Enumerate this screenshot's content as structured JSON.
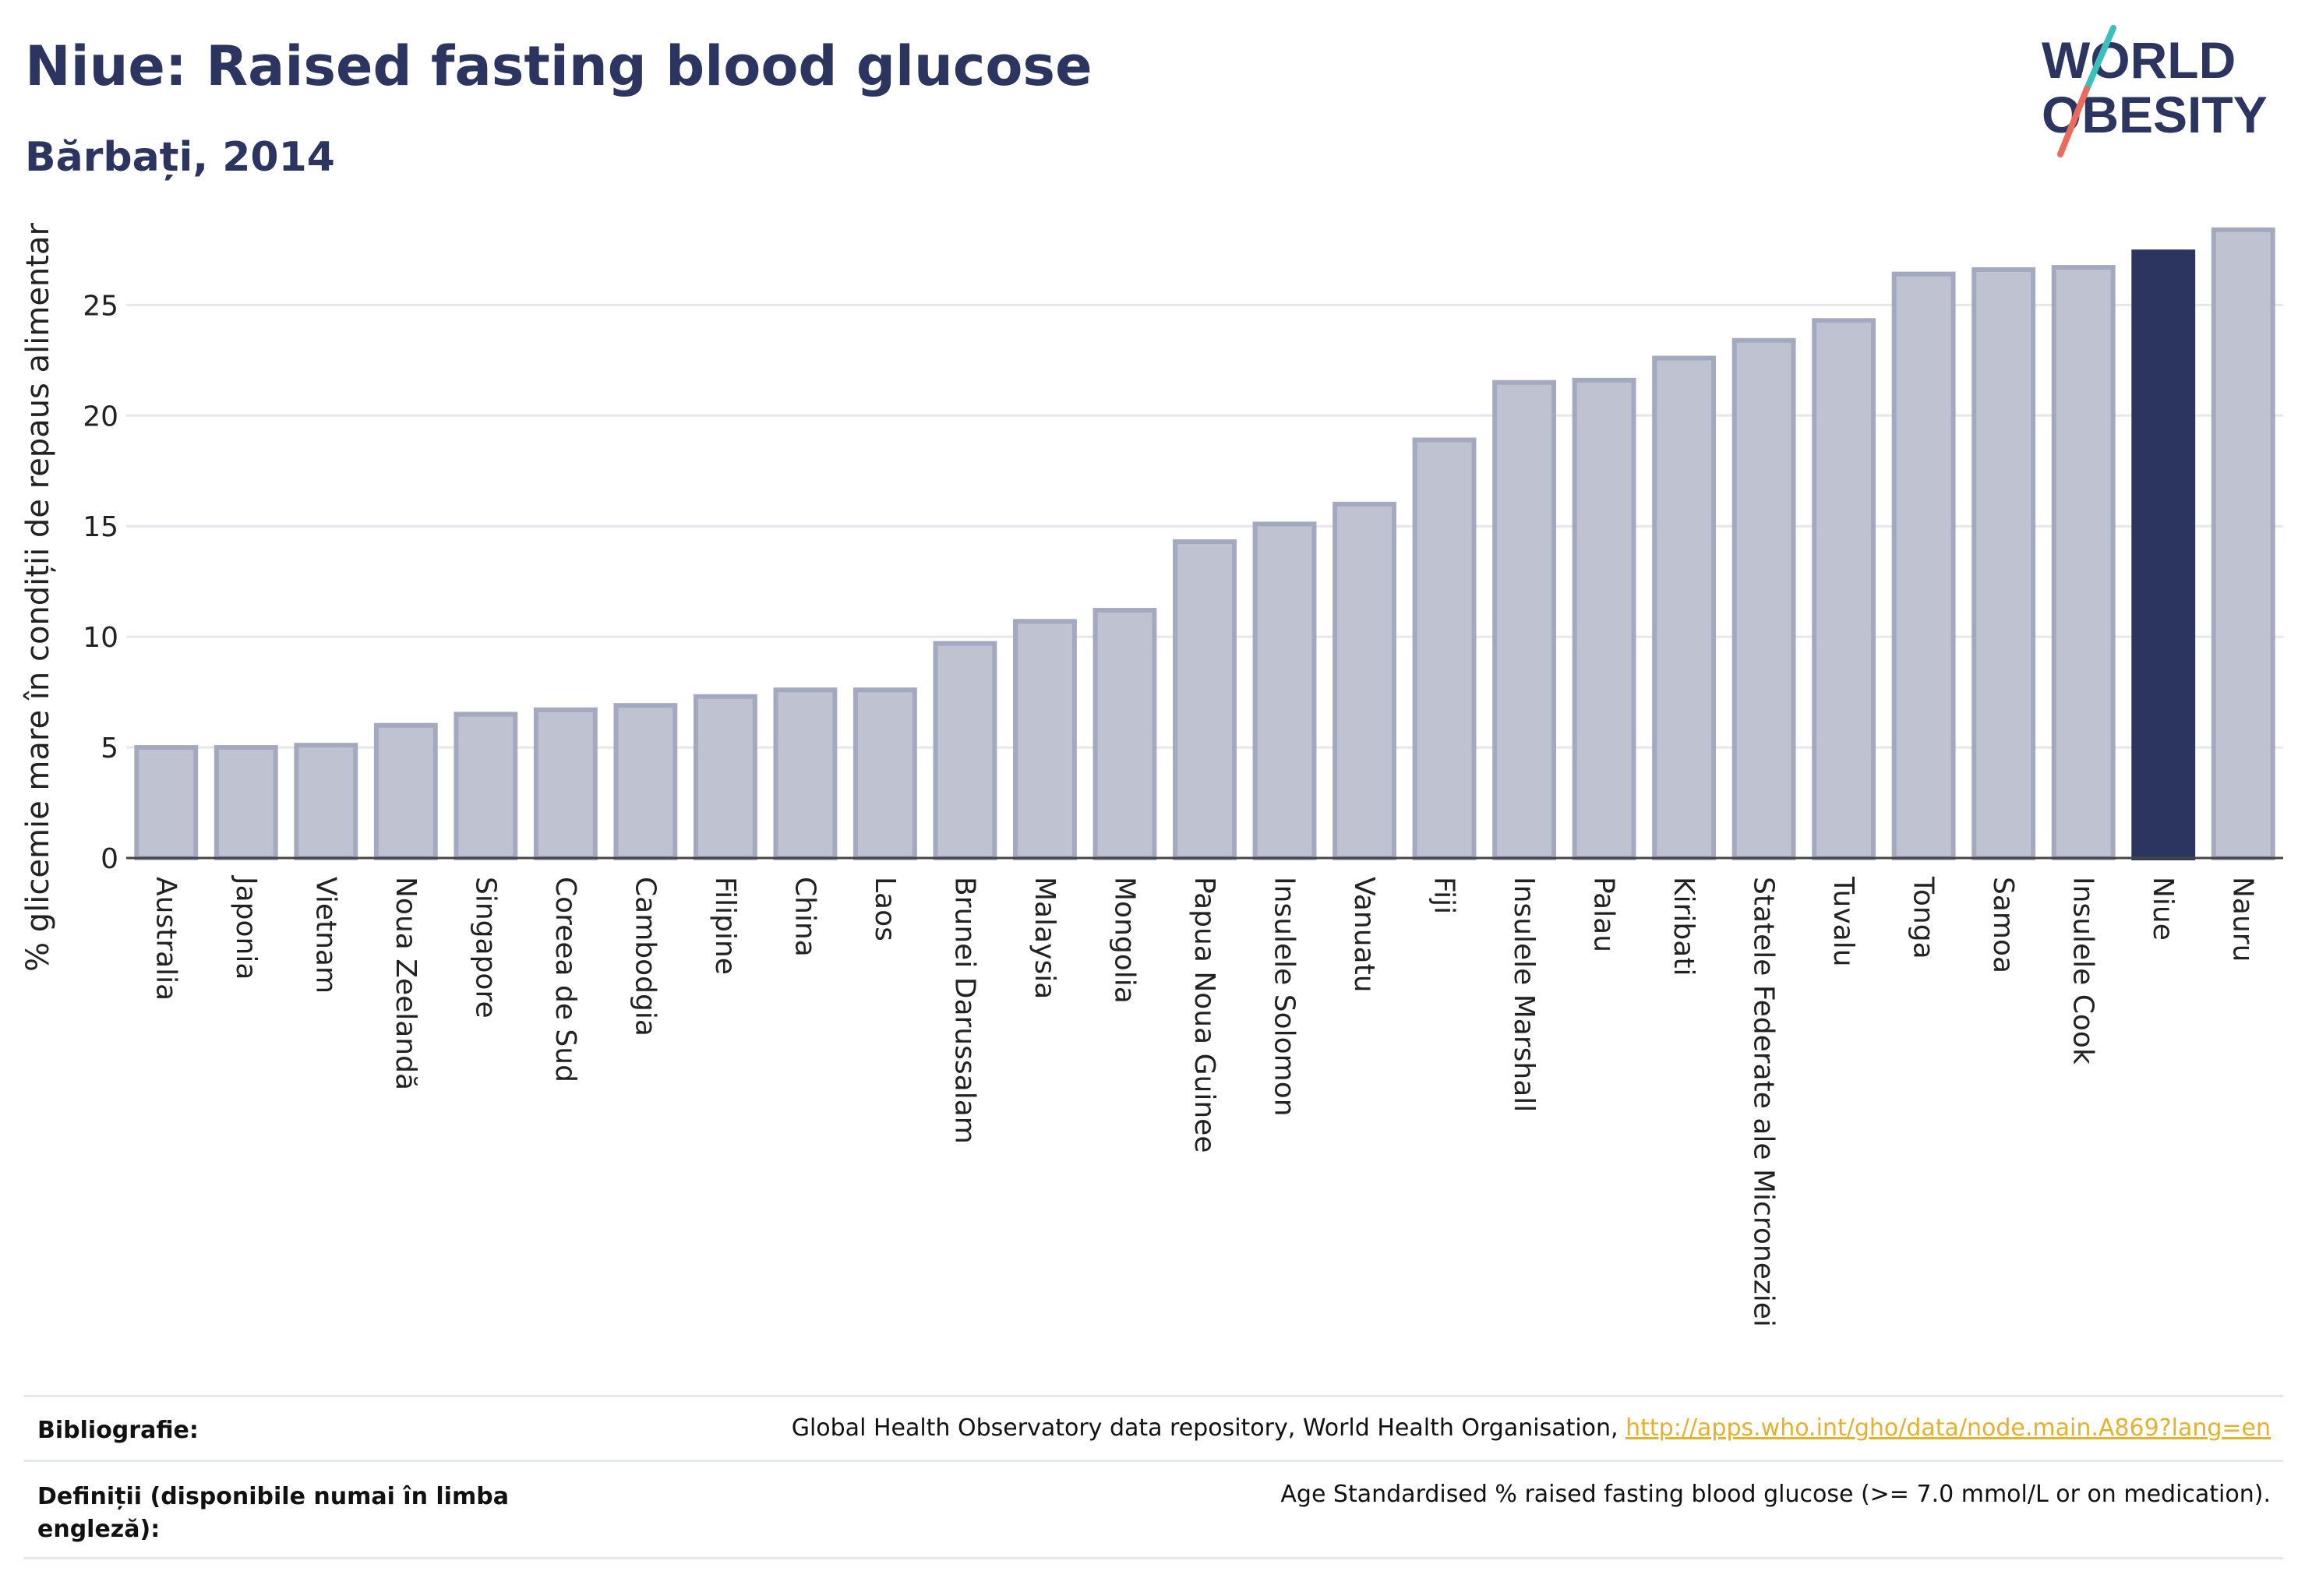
{
  "header": {
    "title": "Niue: Raised fasting blood glucose",
    "subtitle": "Bărbați, 2014"
  },
  "logo": {
    "line1": "WORLD",
    "line2": "OBESITY"
  },
  "colors": {
    "highlight": "#2b3560",
    "bar_fill": "#bec2d1",
    "bar_stroke": "#a4a9c0",
    "grid": "#e6e7ec",
    "logo_teal": "#3bbfbd",
    "logo_coral": "#ea6a5b"
  },
  "chart_data": {
    "type": "bar",
    "title": "Niue: Raised fasting blood glucose",
    "subtitle": "Bărbați, 2014",
    "ylabel": "% glicemie mare în condiții de repaus alimentar",
    "ylim": [
      0,
      28.5
    ],
    "yticks": [
      0,
      5,
      10,
      15,
      20,
      25
    ],
    "grid": true,
    "highlight": "Niue",
    "categories": [
      "Australia",
      "Japonia",
      "Vietnam",
      "Noua Zeelandă",
      "Singapore",
      "Coreea de Sud",
      "Cambodgia",
      "Filipine",
      "China",
      "Laos",
      "Brunei Darussalam",
      "Malaysia",
      "Mongolia",
      "Papua Noua Guinee",
      "Insulele Solomon",
      "Vanuatu",
      "Fiji",
      "Insulele Marshall",
      "Palau",
      "Kiribati",
      "Statele Federate ale Microneziei",
      "Tuvalu",
      "Tonga",
      "Samoa",
      "Insulele Cook",
      "Niue",
      "Nauru"
    ],
    "values": [
      5.0,
      5.0,
      5.1,
      6.0,
      6.5,
      6.7,
      6.9,
      7.3,
      7.6,
      7.6,
      9.7,
      10.7,
      11.2,
      14.3,
      15.1,
      16.0,
      18.9,
      21.5,
      21.6,
      22.6,
      23.4,
      24.3,
      26.4,
      26.6,
      26.7,
      27.4,
      28.4
    ]
  },
  "footer": {
    "bibliography_label": "Bibliografie:",
    "bibliography_text": "Global Health Observatory data repository, World Health Organisation,",
    "bibliography_link": "http://apps.who.int/gho/data/node.main.A869?lang=en",
    "definitions_label": "Definiții (disponibile numai în limba engleză):",
    "definitions_text": "Age Standardised % raised fasting blood glucose (>= 7.0 mmol/L or on medication)."
  }
}
